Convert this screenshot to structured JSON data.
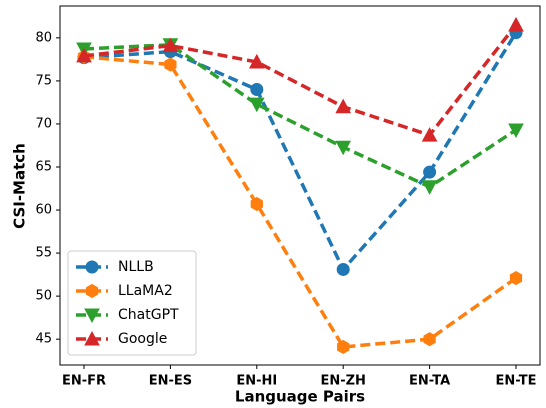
{
  "chart_data": {
    "type": "line",
    "xlabel": "Language Pairs",
    "ylabel": "CSI-Match",
    "categories": [
      "EN-FR",
      "EN-ES",
      "EN-HI",
      "EN-ZH",
      "EN-TA",
      "EN-TE"
    ],
    "series": [
      {
        "name": "NLLB",
        "color": "#1f77b4",
        "marker": "o",
        "values": [
          77.7,
          78.4,
          74.0,
          53.1,
          64.4,
          80.6
        ]
      },
      {
        "name": "LLaMA2",
        "color": "#ff7f0e",
        "marker": "h",
        "values": [
          77.8,
          76.9,
          60.7,
          44.1,
          45.0,
          52.1
        ]
      },
      {
        "name": "ChatGPT",
        "color": "#2ca02c",
        "marker": "v",
        "values": [
          78.7,
          79.2,
          72.3,
          67.3,
          62.7,
          69.3
        ]
      },
      {
        "name": "Google",
        "color": "#d62728",
        "marker": "^",
        "values": [
          77.9,
          79.1,
          77.2,
          72.0,
          68.7,
          81.5
        ]
      }
    ],
    "ylim": [
      42.0,
      83.7
    ],
    "yticks": [
      45,
      50,
      55,
      60,
      65,
      70,
      75,
      80
    ],
    "legend": "lower left"
  }
}
